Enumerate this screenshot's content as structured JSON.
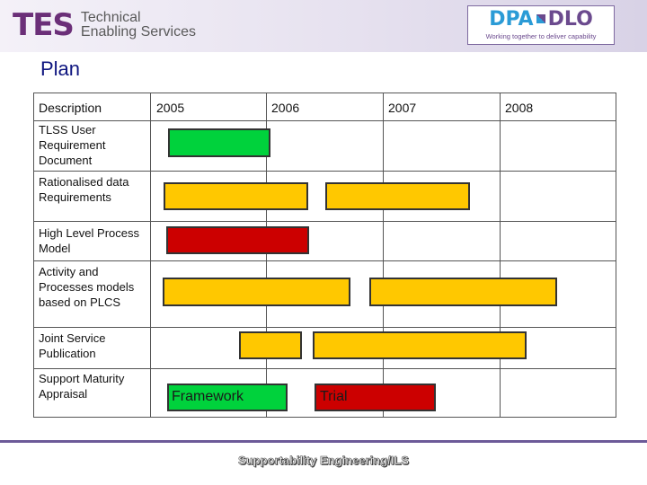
{
  "header": {
    "logo_left": {
      "mark": "TES",
      "line1": "Technical",
      "line2": "Enabling Services"
    },
    "logo_right": {
      "part1": "DPA",
      "part2": "DLO",
      "tagline": "Working together to deliver capability"
    }
  },
  "title": "Plan",
  "table": {
    "column_headers": [
      "Description",
      "2005",
      "2006",
      "2007",
      "2008"
    ],
    "rows": [
      {
        "description": "TLSS User Requirement Document"
      },
      {
        "description": "Rationalised data Requirements"
      },
      {
        "description": "High Level Process Model"
      },
      {
        "description": "Activity and Processes models based on PLCS"
      },
      {
        "description": "Joint Service Publication"
      },
      {
        "description": "Support Maturity Appraisal"
      }
    ],
    "bar_labels": {
      "framework": "Framework",
      "trial": "Trial"
    }
  },
  "colors": {
    "green": "#00d23c",
    "yellow": "#ffc800",
    "red": "#cc0000",
    "title": "#0f1680",
    "brand_purple": "#6b2f78"
  },
  "footer": "Supportability Engineering/ILS"
}
